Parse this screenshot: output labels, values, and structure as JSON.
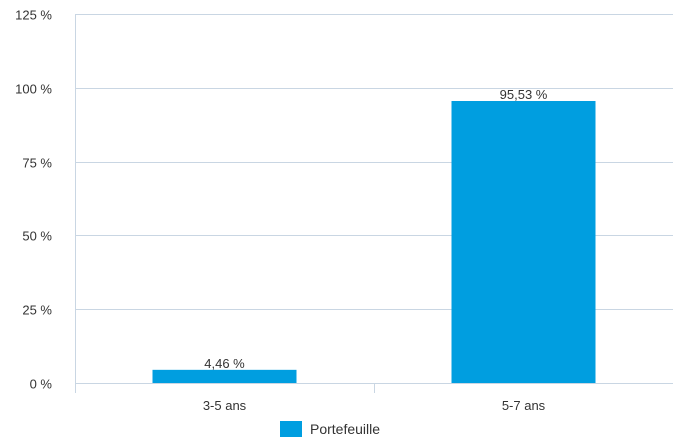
{
  "chart_data": {
    "type": "bar",
    "categories": [
      "3-5 ans",
      "5-7 ans"
    ],
    "series": [
      {
        "name": "Portefeuille",
        "values": [
          4.46,
          95.53
        ],
        "labels": [
          "4,46 %",
          "95,53 %"
        ],
        "color": "#009ee0"
      }
    ],
    "yticks": [
      "0 %",
      "25 %",
      "50 %",
      "75 %",
      "100 %",
      "125 %"
    ],
    "ylim": [
      0,
      125
    ],
    "grid": true,
    "legend_position": "bottom",
    "gridline_color": "#c9d6e3",
    "title": "",
    "xlabel": "",
    "ylabel": ""
  }
}
